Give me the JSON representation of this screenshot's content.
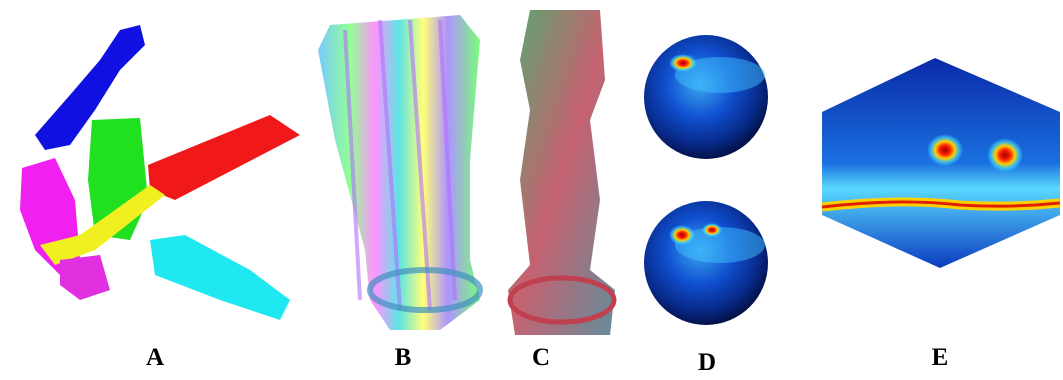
{
  "panels": {
    "labels": [
      "A",
      "B",
      "C",
      "D",
      "E"
    ]
  }
}
